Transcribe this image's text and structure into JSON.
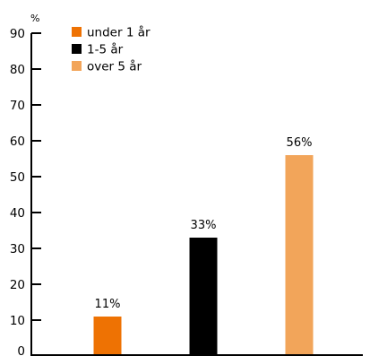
{
  "chart_data": {
    "type": "bar",
    "unit": "%",
    "ylim": [
      0,
      90
    ],
    "yticks": [
      0,
      10,
      20,
      30,
      40,
      50,
      60,
      70,
      80,
      90
    ],
    "grid": false,
    "legend_position": "top-left",
    "series": [
      {
        "name": "under 1 år",
        "value": 11,
        "label": "11%",
        "color": "#ee7203"
      },
      {
        "name": "1-5 år",
        "value": 33,
        "label": "33%",
        "color": "#000000"
      },
      {
        "name": "over 5 år",
        "value": 56,
        "label": "56%",
        "color": "#f2a55a"
      }
    ]
  }
}
